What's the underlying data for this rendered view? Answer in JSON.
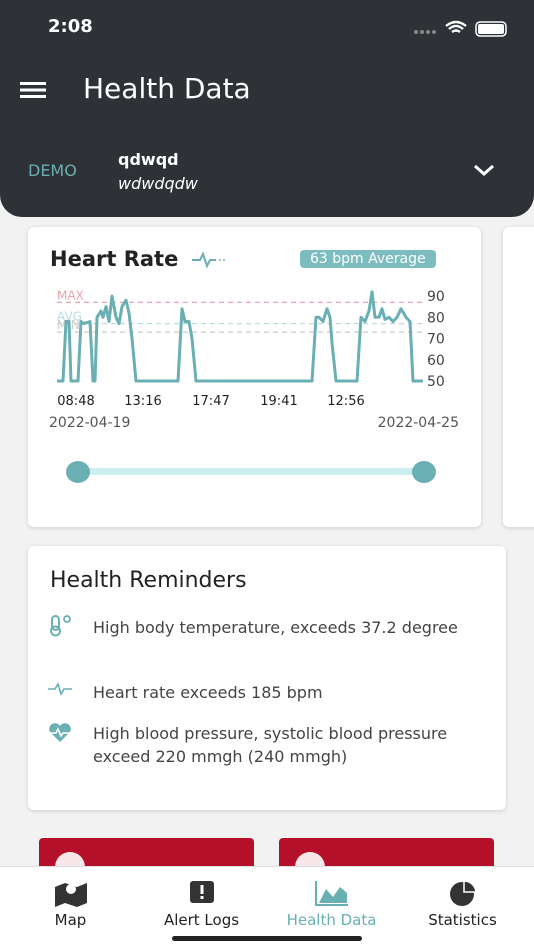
{
  "status_bar": {
    "time": "2:08"
  },
  "header": {
    "title": "Health Data"
  },
  "user": {
    "tag": "DEMO",
    "name": "qdwqd",
    "subtitle": "wdwdqdw"
  },
  "heart_rate": {
    "title": "Heart Rate",
    "badge": "63 bpm Average",
    "start_date": "2022-04-19",
    "end_date": "2022-04-25",
    "chart_data": {
      "type": "line",
      "x": [
        0,
        6,
        9,
        12,
        14,
        21,
        24,
        27,
        33,
        36,
        38,
        40,
        44,
        46,
        49,
        52,
        55,
        59,
        62,
        65,
        69,
        72,
        75,
        79,
        121,
        125,
        128,
        132,
        135,
        139,
        255,
        259,
        262,
        266,
        270,
        273,
        275,
        279,
        300,
        304,
        308,
        312,
        315,
        318,
        322,
        325,
        328,
        332,
        336,
        340,
        344,
        349,
        353,
        356,
        366
      ],
      "series": [
        {
          "color": "#6aafb3",
          "values": [
            50,
            50,
            78,
            78,
            50,
            50,
            78,
            77,
            78,
            50,
            50,
            80,
            83,
            80,
            85,
            78,
            90,
            80,
            77,
            85,
            88,
            82,
            70,
            50,
            50,
            84,
            78,
            78,
            70,
            50,
            50,
            80,
            80,
            78,
            84,
            80,
            68,
            50,
            50,
            80,
            78,
            83,
            92,
            80,
            80,
            84,
            79,
            80,
            78,
            80,
            84,
            80,
            78,
            50,
            50
          ]
        }
      ],
      "xlim": [
        0,
        366
      ],
      "xticks": [
        {
          "value": 19,
          "label": "08:48"
        },
        {
          "value": 86,
          "label": "13:16"
        },
        {
          "value": 154,
          "label": "17:47"
        },
        {
          "value": 222,
          "label": "19:41"
        },
        {
          "value": 289,
          "label": "12:56"
        }
      ],
      "ylim": [
        50,
        90
      ],
      "yticks": [
        50,
        60,
        70,
        80,
        90
      ],
      "ref_lines": [
        {
          "label": "MAX",
          "value": 87,
          "color": "#e8a3ad"
        },
        {
          "label": "AVG",
          "value": 77,
          "color": "#b9dcdc"
        },
        {
          "label": "MIN",
          "value": 73,
          "color": "#cccccc"
        }
      ]
    }
  },
  "reminders": {
    "title": "Health Reminders",
    "items": [
      "High body temperature, exceeds 37.2 degree",
      "Heart rate exceeds 185 bpm",
      "High blood pressure, systolic blood pressure exceed 220 mmgh (240 mmgh)"
    ]
  },
  "tabs": [
    "Map",
    "Alert Logs",
    "Health Data",
    "Statistics"
  ]
}
